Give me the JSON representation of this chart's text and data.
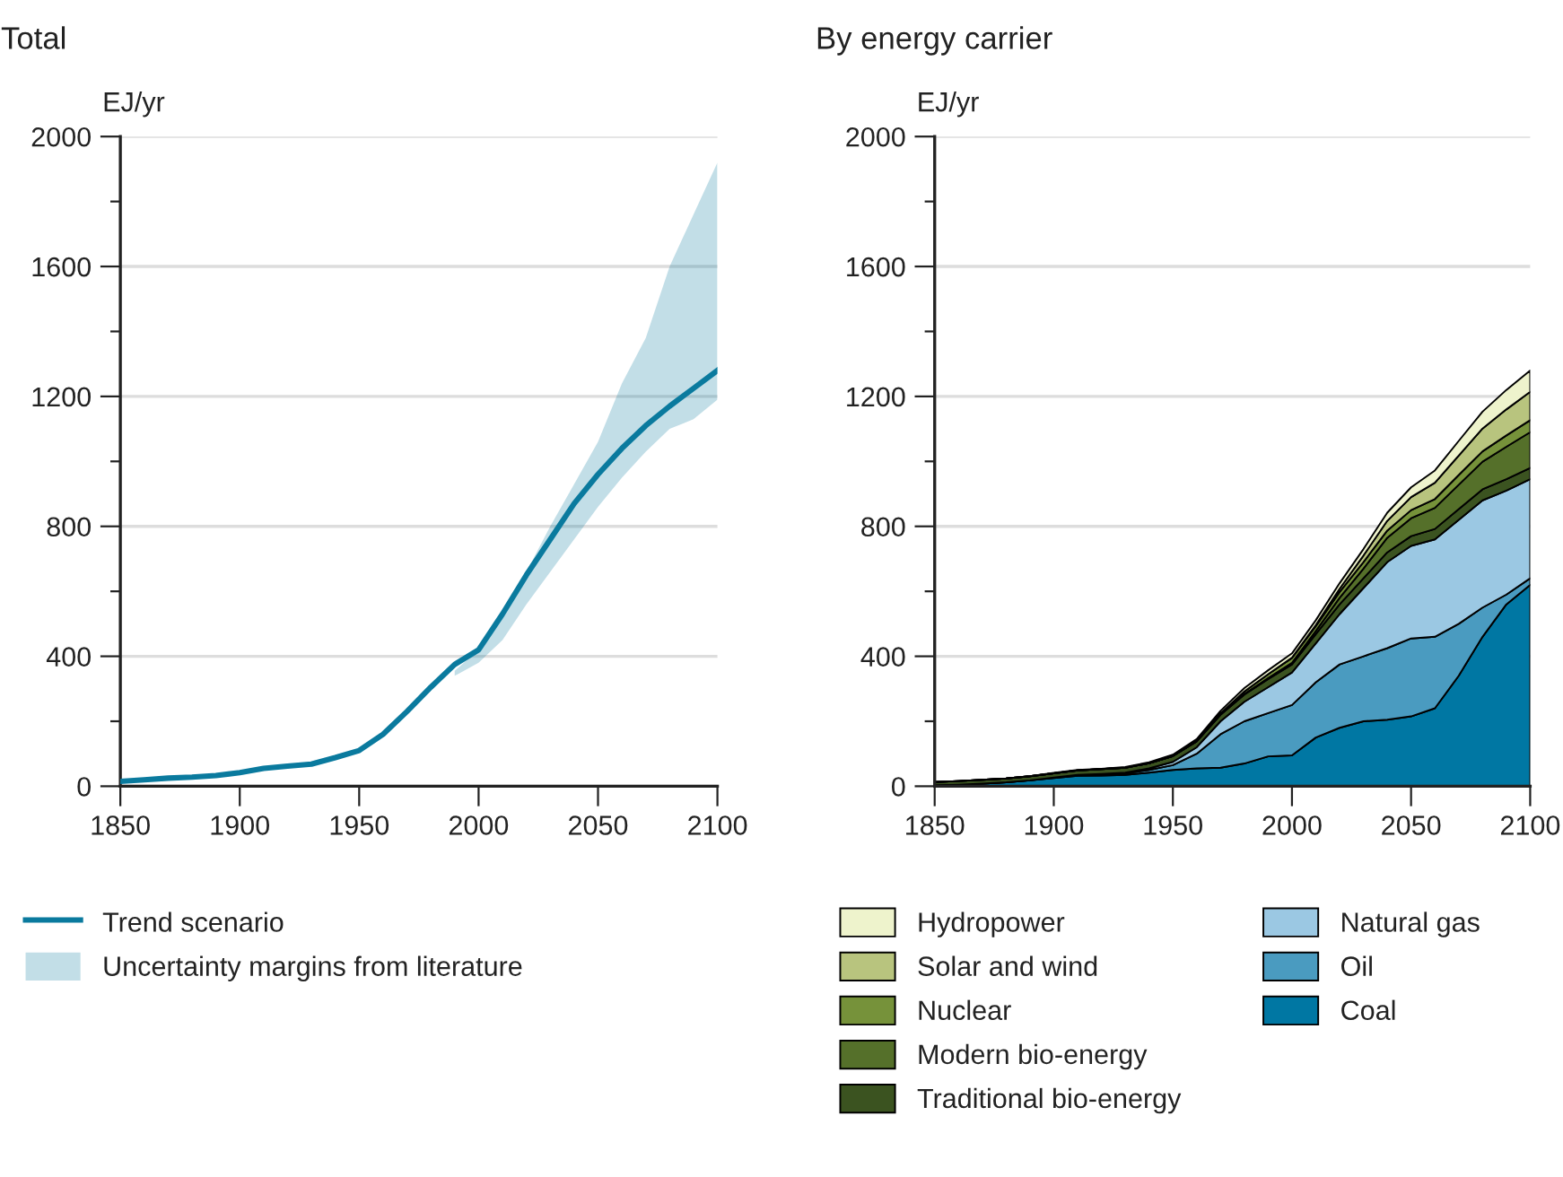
{
  "chart_data": [
    {
      "type": "line",
      "title": "Total",
      "ylabel": "EJ/yr",
      "x": [
        1850,
        1860,
        1870,
        1880,
        1890,
        1900,
        1910,
        1920,
        1930,
        1940,
        1950,
        1960,
        1970,
        1980,
        1990,
        2000,
        2010,
        2020,
        2030,
        2040,
        2050,
        2060,
        2070,
        2080,
        2090,
        2100
      ],
      "series": [
        {
          "name": "Trend scenario",
          "type": "line",
          "color": "#0a7a9e",
          "values": [
            15,
            20,
            25,
            28,
            33,
            42,
            55,
            62,
            68,
            88,
            110,
            160,
            230,
            305,
            375,
            420,
            530,
            650,
            760,
            870,
            960,
            1040,
            1110,
            1170,
            1225,
            1280
          ],
          "lower": [
            null,
            null,
            null,
            null,
            null,
            null,
            null,
            null,
            null,
            null,
            null,
            null,
            null,
            null,
            340,
            380,
            450,
            560,
            660,
            760,
            860,
            950,
            1030,
            1100,
            1130,
            1190
          ],
          "upper": [
            null,
            null,
            null,
            null,
            null,
            null,
            null,
            null,
            null,
            null,
            null,
            null,
            null,
            null,
            355,
            420,
            520,
            660,
            800,
            930,
            1060,
            1240,
            1380,
            1600,
            1760,
            1920
          ]
        }
      ],
      "annotations": [
        "Uncertainty margins from literature"
      ],
      "xlim": [
        1850,
        2100
      ],
      "xticks": [
        1850,
        1900,
        1950,
        2000,
        2050,
        2100
      ],
      "ylim": [
        0,
        2000
      ],
      "yticks": [
        0,
        {
          "value": 200,
          "label": null
        },
        400,
        {
          "value": 600,
          "label": null
        },
        800,
        {
          "value": 1000,
          "label": null
        },
        1200,
        {
          "value": 1400,
          "label": null
        },
        1600,
        {
          "value": 1800,
          "label": null
        },
        2000
      ],
      "grid": "y",
      "legend": "bottom"
    },
    {
      "type": "area",
      "title": "By energy carrier",
      "ylabel": "EJ/yr",
      "stacked": true,
      "x": [
        1850,
        1860,
        1870,
        1880,
        1890,
        1900,
        1910,
        1920,
        1930,
        1940,
        1950,
        1960,
        1970,
        1980,
        1990,
        2000,
        2010,
        2020,
        2030,
        2040,
        2050,
        2060,
        2070,
        2080,
        2090,
        2100
      ],
      "series": [
        {
          "name": "Coal",
          "color": "#0077a3",
          "values": [
            3,
            5,
            8,
            12,
            18,
            25,
            32,
            33,
            35,
            42,
            50,
            55,
            57,
            70,
            92,
            95,
            150,
            180,
            200,
            205,
            215,
            240,
            340,
            460,
            560,
            620
          ]
        },
        {
          "name": "Oil",
          "color": "#4a9bc0",
          "values": [
            0,
            0,
            0,
            0,
            0,
            1,
            2,
            3,
            5,
            8,
            15,
            45,
            103,
            130,
            133,
            155,
            170,
            195,
            200,
            220,
            240,
            220,
            160,
            90,
            30,
            20
          ]
        },
        {
          "name": "Natural gas",
          "color": "#9bc8e3",
          "values": [
            0,
            0,
            0,
            0,
            0,
            1,
            1,
            2,
            2,
            5,
            10,
            20,
            40,
            60,
            80,
            100,
            120,
            155,
            210,
            265,
            285,
            300,
            320,
            330,
            320,
            305
          ]
        },
        {
          "name": "Traditional bio-energy",
          "color": "#3b5320",
          "values": [
            10,
            11,
            12,
            12,
            13,
            13,
            14,
            15,
            15,
            16,
            18,
            18,
            20,
            22,
            25,
            25,
            28,
            30,
            30,
            30,
            30,
            32,
            33,
            34,
            35,
            35
          ]
        },
        {
          "name": "Modern bio-energy",
          "color": "#55702a",
          "values": [
            0,
            0,
            0,
            0,
            0,
            0,
            0,
            0,
            0,
            0,
            0,
            0,
            1,
            2,
            3,
            5,
            10,
            20,
            30,
            45,
            55,
            65,
            75,
            85,
            100,
            110
          ]
        },
        {
          "name": "Nuclear",
          "color": "#76923a",
          "values": [
            0,
            0,
            0,
            0,
            0,
            0,
            0,
            0,
            0,
            0,
            0,
            1,
            3,
            8,
            12,
            15,
            15,
            18,
            20,
            22,
            25,
            27,
            30,
            32,
            35,
            37
          ]
        },
        {
          "name": "Solar and wind",
          "color": "#b8c47e",
          "values": [
            0,
            0,
            0,
            0,
            0,
            0,
            0,
            0,
            0,
            0,
            0,
            0,
            0,
            0,
            0,
            1,
            3,
            10,
            20,
            30,
            40,
            50,
            60,
            70,
            80,
            87
          ]
        },
        {
          "name": "Hydropower",
          "color": "#eef3cc",
          "values": [
            0,
            0,
            0,
            0,
            0,
            1,
            1,
            1,
            2,
            3,
            4,
            6,
            8,
            10,
            12,
            13,
            15,
            17,
            20,
            25,
            30,
            38,
            45,
            52,
            60,
            66
          ]
        }
      ],
      "xlim": [
        1850,
        2100
      ],
      "xticks": [
        1850,
        1900,
        1950,
        2000,
        2050,
        2100
      ],
      "ylim": [
        0,
        2000
      ],
      "yticks": [
        0,
        {
          "value": 200,
          "label": null
        },
        400,
        {
          "value": 600,
          "label": null
        },
        800,
        {
          "value": 1000,
          "label": null
        },
        1200,
        {
          "value": 1400,
          "label": null
        },
        1600,
        {
          "value": 1800,
          "label": null
        },
        2000
      ],
      "grid": "y",
      "legend": "bottom"
    }
  ]
}
